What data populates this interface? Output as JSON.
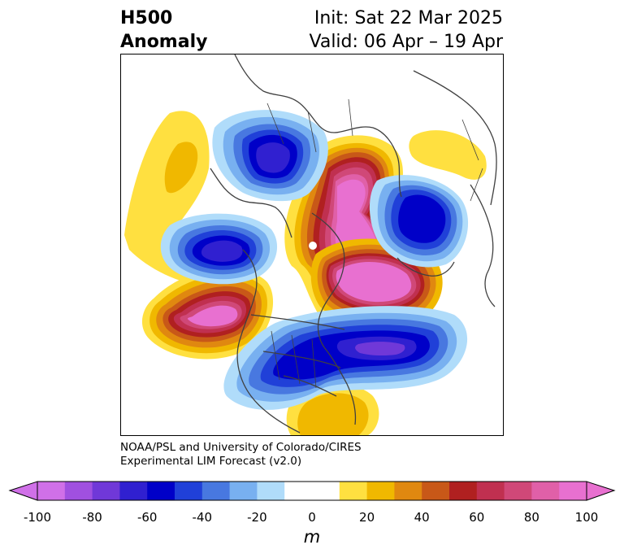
{
  "header": {
    "variable": "H500",
    "type": "Anomaly",
    "init": "Init: Sat 22 Mar 2025",
    "valid": "Valid: 06 Apr – 19 Apr"
  },
  "credit": {
    "line1": "NOAA/PSL and University of Colorado/CIRES",
    "line2": "Experimental LIM Forecast (v2.0)"
  },
  "colorbar": {
    "units": "m",
    "tick_labels": [
      "-100",
      "-80",
      "-60",
      "-40",
      "-20",
      "0",
      "20",
      "40",
      "60",
      "80",
      "100"
    ],
    "colors": [
      "#d070e8",
      "#a050e0",
      "#7038d8",
      "#3020d0",
      "#0000c8",
      "#2040d8",
      "#4878e0",
      "#78b0f0",
      "#b0dcfa",
      "#ffffff",
      "#ffffff",
      "#ffe040",
      "#f0b800",
      "#e08810",
      "#c85818",
      "#b02020",
      "#c03050",
      "#d04878",
      "#e060a8",
      "#e870d0"
    ],
    "extend_min_color": "#d070e8",
    "extend_max_color": "#e870d0"
  },
  "map": {
    "projection": "polar stereographic (North America / North Pacific)",
    "features": [
      "coastlines",
      "country borders",
      "US state borders"
    ]
  }
}
